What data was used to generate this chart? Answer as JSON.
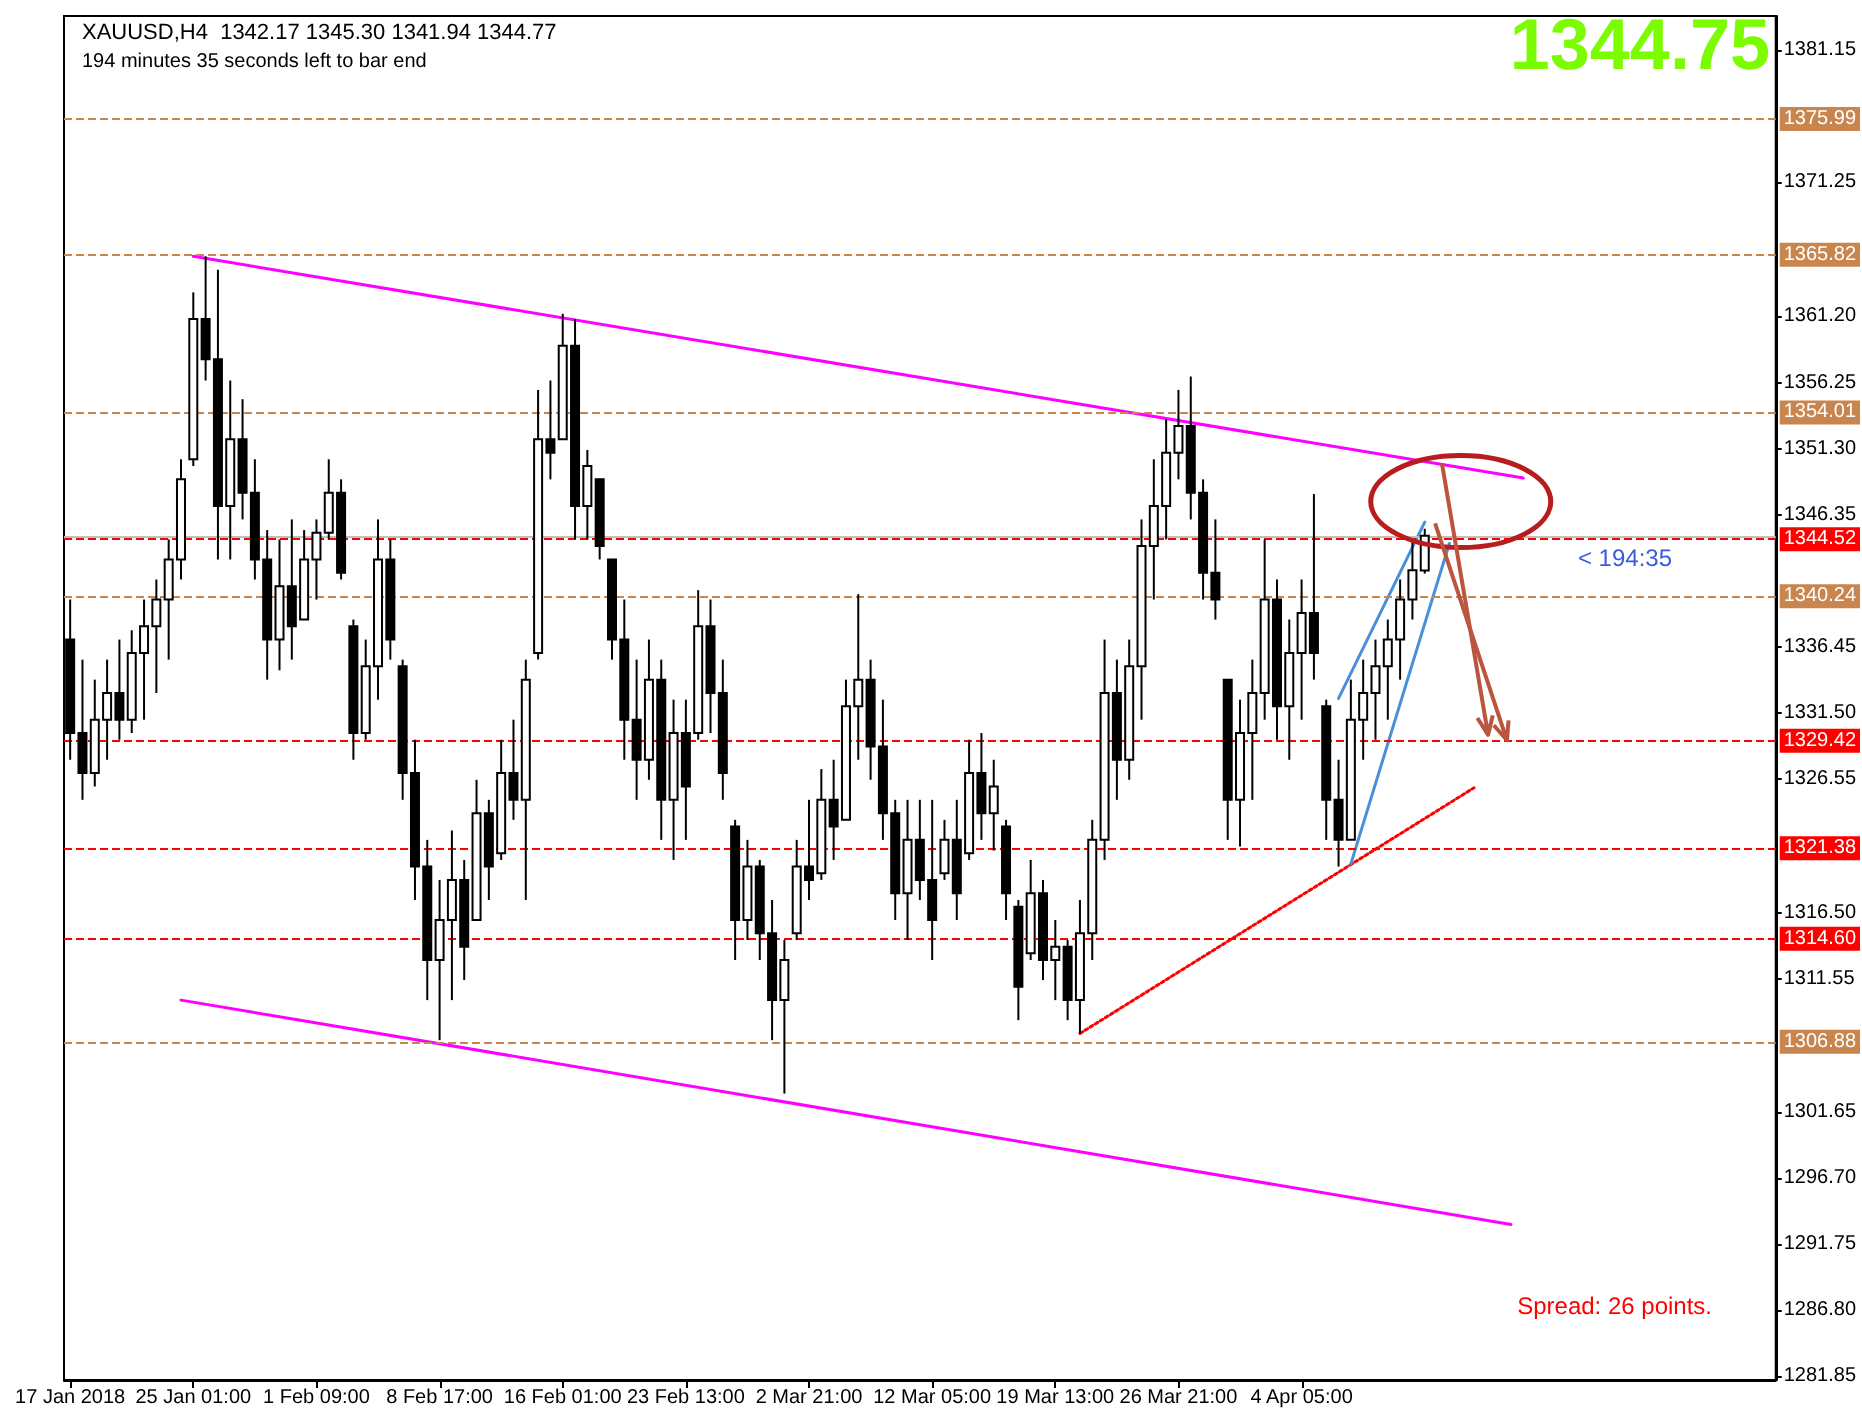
{
  "chart_data": {
    "type": "candlestick",
    "title": "XAUUSD,H4  1342.17 1345.30 1341.94 1344.77",
    "subtitle": "194 minutes 35 seconds left to bar end",
    "marker": "none",
    "categories": [
      "17 Jan 2018",
      null,
      null,
      null,
      null,
      null,
      null,
      null,
      null,
      null,
      "25 Jan 01:00",
      null,
      null,
      null,
      null,
      null,
      null,
      null,
      null,
      null,
      "1 Feb 09:00",
      null,
      null,
      null,
      null,
      null,
      null,
      null,
      null,
      null,
      "8 Feb 17:00",
      null,
      null,
      null,
      null,
      null,
      null,
      null,
      null,
      null,
      "16 Feb 01:00",
      null,
      null,
      null,
      null,
      null,
      null,
      null,
      null,
      null,
      "23 Feb 13:00",
      null,
      null,
      null,
      null,
      null,
      null,
      null,
      null,
      null,
      "2 Mar 21:00",
      null,
      null,
      null,
      null,
      null,
      null,
      null,
      null,
      null,
      "12 Mar 05:00",
      null,
      null,
      null,
      null,
      null,
      null,
      null,
      null,
      null,
      "19 Mar 13:00",
      null,
      null,
      null,
      null,
      null,
      null,
      null,
      null,
      null,
      "26 Mar 21:00",
      null,
      null,
      null,
      null,
      null,
      null,
      null,
      null,
      null,
      "4 Apr 05:00",
      null,
      null,
      null,
      null,
      null,
      null,
      null,
      null,
      null,
      null,
      null,
      null,
      null,
      null,
      null,
      null,
      null,
      null,
      null,
      null,
      null,
      null,
      null,
      null,
      null,
      null,
      null,
      null,
      null,
      null,
      null,
      null,
      null,
      null,
      null,
      null,
      null,
      null
    ],
    "ohlc": [
      [
        1337,
        1340,
        1328,
        1330
      ],
      [
        1330,
        1335.5,
        1325,
        1327
      ],
      [
        1327,
        1334,
        1326,
        1331
      ],
      [
        1331,
        1335.5,
        1328,
        1333
      ],
      [
        1333,
        1337,
        1329.5,
        1331
      ],
      [
        1331,
        1337.7,
        1330,
        1336
      ],
      [
        1336,
        1340,
        1331,
        1338
      ],
      [
        1338,
        1341.5,
        1333,
        1340
      ],
      [
        1340,
        1344.5,
        1335.5,
        1343
      ],
      [
        1343,
        1350.5,
        1341.5,
        1349
      ],
      [
        1350.5,
        1363,
        1350,
        1361
      ],
      [
        1361,
        1365.7,
        1356.4,
        1358
      ],
      [
        1358,
        1364.7,
        1343,
        1347
      ],
      [
        1347,
        1356.4,
        1343,
        1352
      ],
      [
        1352,
        1355,
        1346,
        1348
      ],
      [
        1348,
        1350.5,
        1341.5,
        1343
      ],
      [
        1343,
        1345.2,
        1334,
        1337
      ],
      [
        1337,
        1344.5,
        1334.7,
        1341
      ],
      [
        1341,
        1346,
        1335.5,
        1338
      ],
      [
        1338.5,
        1345.2,
        1338.5,
        1343
      ],
      [
        1343,
        1346,
        1340,
        1345
      ],
      [
        1345,
        1350.5,
        1344.5,
        1348
      ],
      [
        1348,
        1349,
        1341.5,
        1342
      ],
      [
        1338,
        1338.5,
        1328,
        1330
      ],
      [
        1330,
        1337,
        1329.5,
        1335
      ],
      [
        1335,
        1346,
        1332.5,
        1343
      ],
      [
        1343,
        1344.5,
        1335.5,
        1337
      ],
      [
        1335,
        1335.5,
        1325,
        1327
      ],
      [
        1327,
        1329.5,
        1317.5,
        1320
      ],
      [
        1320,
        1322,
        1310,
        1313
      ],
      [
        1313,
        1319,
        1307,
        1316
      ],
      [
        1316,
        1322.7,
        1310,
        1319
      ],
      [
        1319,
        1320.5,
        1311.5,
        1314
      ],
      [
        1316,
        1326.5,
        1316,
        1324
      ],
      [
        1324,
        1325,
        1317.5,
        1320
      ],
      [
        1321,
        1329.5,
        1320.5,
        1327
      ],
      [
        1327,
        1331,
        1323.5,
        1325
      ],
      [
        1325,
        1335.5,
        1317.5,
        1334
      ],
      [
        1336,
        1355.7,
        1335.5,
        1352
      ],
      [
        1352,
        1356.4,
        1349,
        1351
      ],
      [
        1352,
        1361.4,
        1352,
        1359
      ],
      [
        1359,
        1361,
        1344.5,
        1347
      ],
      [
        1347,
        1351.2,
        1344.5,
        1350
      ],
      [
        1349,
        1349,
        1343,
        1344
      ],
      [
        1343,
        1343,
        1335.5,
        1337
      ],
      [
        1337,
        1340,
        1328,
        1331
      ],
      [
        1331,
        1335.5,
        1325,
        1328
      ],
      [
        1328,
        1337,
        1326.5,
        1334
      ],
      [
        1334,
        1335.5,
        1322,
        1325
      ],
      [
        1325,
        1332.5,
        1320.5,
        1330
      ],
      [
        1330,
        1332.5,
        1322,
        1326
      ],
      [
        1330,
        1340.7,
        1329.5,
        1338
      ],
      [
        1338,
        1340,
        1330,
        1333
      ],
      [
        1333,
        1335.5,
        1325,
        1327
      ],
      [
        1323,
        1323.5,
        1313,
        1316
      ],
      [
        1316,
        1322,
        1314.5,
        1320
      ],
      [
        1320,
        1320.5,
        1313,
        1315
      ],
      [
        1315,
        1317.5,
        1307,
        1310
      ],
      [
        1310,
        1314.5,
        1303,
        1313
      ],
      [
        1315,
        1322,
        1314.5,
        1320
      ],
      [
        1320,
        1325,
        1317.5,
        1319
      ],
      [
        1319.5,
        1327.3,
        1319,
        1325
      ],
      [
        1325,
        1328,
        1320.5,
        1323
      ],
      [
        1323.5,
        1334,
        1323.5,
        1332
      ],
      [
        1332,
        1340.4,
        1328,
        1334
      ],
      [
        1334,
        1335.5,
        1326.5,
        1329
      ],
      [
        1329,
        1332.5,
        1322,
        1324
      ],
      [
        1324,
        1325,
        1316,
        1318
      ],
      [
        1318,
        1325,
        1314.5,
        1322
      ],
      [
        1322,
        1325,
        1317.5,
        1319
      ],
      [
        1319,
        1325,
        1313,
        1316
      ],
      [
        1319.5,
        1323.5,
        1319,
        1322
      ],
      [
        1322,
        1325,
        1316,
        1318
      ],
      [
        1321,
        1329.5,
        1320.5,
        1327
      ],
      [
        1327,
        1330,
        1322,
        1324
      ],
      [
        1324,
        1328,
        1321.2,
        1326
      ],
      [
        1323,
        1323.5,
        1316,
        1318
      ],
      [
        1317,
        1317.5,
        1308.5,
        1311
      ],
      [
        1313.5,
        1320.5,
        1313,
        1318
      ],
      [
        1318,
        1319,
        1311.5,
        1313
      ],
      [
        1313,
        1316,
        1310,
        1314
      ],
      [
        1314,
        1314.5,
        1308.5,
        1310
      ],
      [
        1310,
        1317.5,
        1307.5,
        1315
      ],
      [
        1315,
        1323.5,
        1313,
        1322
      ],
      [
        1322,
        1337,
        1320.5,
        1333
      ],
      [
        1333,
        1335.5,
        1325,
        1328
      ],
      [
        1328,
        1337,
        1326.5,
        1335
      ],
      [
        1335,
        1346,
        1331,
        1344
      ],
      [
        1344,
        1350.5,
        1340,
        1347
      ],
      [
        1347,
        1353.5,
        1344.5,
        1351
      ],
      [
        1351,
        1355.7,
        1349,
        1353
      ],
      [
        1353,
        1356.7,
        1346,
        1348
      ],
      [
        1348,
        1349,
        1340,
        1342
      ],
      [
        1342,
        1346,
        1338.5,
        1340
      ],
      [
        1334,
        1334,
        1322,
        1325
      ],
      [
        1325,
        1332.5,
        1321.5,
        1330
      ],
      [
        1330,
        1335.5,
        1325,
        1333
      ],
      [
        1333,
        1344.5,
        1331,
        1340
      ],
      [
        1340,
        1341.5,
        1329.5,
        1332
      ],
      [
        1332,
        1338.5,
        1328,
        1336
      ],
      [
        1336,
        1341.5,
        1331,
        1339
      ],
      [
        1339,
        1347.9,
        1334,
        1336
      ],
      [
        1332,
        1332.5,
        1322,
        1325
      ],
      [
        1325,
        1328,
        1320,
        1322
      ],
      [
        1322,
        1334,
        1322,
        1331
      ],
      [
        1331,
        1335.5,
        1328,
        1333
      ],
      [
        1333,
        1337,
        1329.5,
        1335
      ],
      [
        1335,
        1338.5,
        1331,
        1337
      ],
      [
        1337,
        1341.5,
        1334,
        1340
      ],
      [
        1340,
        1344.5,
        1338.5,
        1342.2
      ],
      [
        1342.17,
        1345.3,
        1341.94,
        1344.77
      ],
      null,
      null,
      null,
      null,
      null,
      null,
      null,
      null,
      null,
      null,
      null,
      null,
      null,
      null,
      null,
      null,
      null,
      null,
      null,
      null,
      null,
      null,
      null,
      null,
      null,
      null,
      null,
      null
    ],
    "series": [
      {
        "type": "line",
        "color": "#ff00ff",
        "line_style": "solid",
        "values": [
          null,
          null,
          null,
          null,
          null,
          null,
          null,
          null,
          null,
          null,
          1365.7,
          null,
          null,
          null,
          null,
          null,
          null,
          null,
          null,
          null,
          null,
          null,
          null,
          null,
          null,
          null,
          null,
          null,
          null,
          null,
          null,
          null,
          null,
          null,
          null,
          null,
          null,
          null,
          null,
          null,
          null,
          null,
          null,
          null,
          null,
          null,
          null,
          null,
          null,
          null,
          null,
          null,
          null,
          null,
          null,
          null,
          null,
          null,
          null,
          null,
          null,
          null,
          null,
          null,
          null,
          null,
          null,
          null,
          null,
          null,
          null,
          null,
          null,
          null,
          null,
          null,
          null,
          null,
          null,
          null,
          null,
          null,
          null,
          null,
          null,
          null,
          null,
          null,
          null,
          null,
          null,
          null,
          null,
          null,
          null,
          null,
          null,
          null,
          null,
          null,
          null,
          null,
          null,
          null,
          null,
          null,
          null,
          null,
          null,
          null,
          null,
          null,
          null,
          null,
          null,
          null,
          null,
          null,
          1349.1,
          null,
          null,
          null,
          null,
          null,
          null,
          null,
          null,
          null,
          null,
          null,
          null,
          null,
          null,
          null,
          null,
          null,
          null,
          null,
          null
        ]
      },
      {
        "type": "line",
        "color": "#ff00ff",
        "line_style": "solid",
        "values": [
          null,
          null,
          null,
          null,
          null,
          null,
          null,
          null,
          null,
          1310.0,
          null,
          null,
          null,
          null,
          null,
          null,
          null,
          null,
          null,
          null,
          null,
          null,
          null,
          null,
          null,
          null,
          null,
          null,
          null,
          null,
          null,
          null,
          null,
          null,
          null,
          null,
          null,
          null,
          null,
          null,
          null,
          null,
          null,
          null,
          null,
          null,
          null,
          null,
          null,
          null,
          null,
          null,
          null,
          null,
          null,
          null,
          null,
          null,
          null,
          null,
          null,
          null,
          null,
          null,
          null,
          null,
          null,
          null,
          null,
          null,
          null,
          null,
          null,
          null,
          null,
          null,
          null,
          null,
          null,
          null,
          null,
          null,
          null,
          null,
          null,
          null,
          null,
          null,
          null,
          null,
          null,
          null,
          null,
          null,
          null,
          null,
          null,
          null,
          null,
          null,
          null,
          null,
          null,
          null,
          null,
          null,
          null,
          null,
          null,
          null,
          null,
          null,
          null,
          null,
          null,
          null,
          null,
          1293.2,
          null,
          null,
          null,
          null,
          null,
          null,
          null,
          null,
          null,
          null,
          null,
          null,
          null,
          null,
          null,
          null,
          null,
          null,
          null,
          null,
          null
        ]
      },
      {
        "type": "line",
        "color": "#ff0000",
        "line_style": "dotted",
        "values": [
          null,
          null,
          null,
          null,
          null,
          null,
          null,
          null,
          null,
          null,
          null,
          null,
          null,
          null,
          null,
          null,
          null,
          null,
          null,
          null,
          null,
          null,
          null,
          null,
          null,
          null,
          null,
          null,
          null,
          null,
          null,
          null,
          null,
          null,
          null,
          null,
          null,
          null,
          null,
          null,
          null,
          null,
          null,
          null,
          null,
          null,
          null,
          null,
          null,
          null,
          null,
          null,
          null,
          null,
          null,
          null,
          null,
          null,
          null,
          null,
          null,
          null,
          null,
          null,
          null,
          null,
          null,
          null,
          null,
          null,
          null,
          null,
          null,
          null,
          null,
          null,
          null,
          null,
          null,
          null,
          null,
          null,
          1307.5,
          null,
          null,
          null,
          null,
          null,
          null,
          null,
          null,
          null,
          null,
          null,
          null,
          null,
          null,
          null,
          null,
          null,
          null,
          null,
          null,
          null,
          null,
          null,
          null,
          null,
          null,
          null,
          null,
          null,
          null,
          null,
          1325.9,
          null,
          null,
          null,
          null,
          null,
          null,
          null,
          null,
          null,
          null,
          null,
          null,
          null,
          null,
          null,
          null,
          null,
          null,
          null,
          null,
          null,
          null,
          null,
          null
        ]
      },
      {
        "type": "line",
        "color": "#4a8fd9",
        "line_style": "solid",
        "values": [
          null,
          null,
          null,
          null,
          null,
          null,
          null,
          null,
          null,
          null,
          null,
          null,
          null,
          null,
          null,
          null,
          null,
          null,
          null,
          null,
          null,
          null,
          null,
          null,
          null,
          null,
          null,
          null,
          null,
          null,
          null,
          null,
          null,
          null,
          null,
          null,
          null,
          null,
          null,
          null,
          null,
          null,
          null,
          null,
          null,
          null,
          null,
          null,
          null,
          null,
          null,
          null,
          null,
          null,
          null,
          null,
          null,
          null,
          null,
          null,
          null,
          null,
          null,
          null,
          null,
          null,
          null,
          null,
          null,
          null,
          null,
          null,
          null,
          null,
          null,
          null,
          null,
          null,
          null,
          null,
          null,
          null,
          null,
          null,
          null,
          null,
          null,
          null,
          null,
          null,
          null,
          null,
          null,
          null,
          null,
          null,
          null,
          null,
          null,
          null,
          null,
          null,
          null,
          1332.6,
          null,
          null,
          null,
          null,
          null,
          null,
          1345.8,
          null,
          null,
          null,
          null,
          null,
          null,
          null,
          null,
          null,
          null,
          null,
          null,
          null,
          null,
          null,
          null,
          null,
          null,
          null,
          null,
          null,
          null,
          null,
          null,
          null,
          null,
          null,
          null
        ]
      },
      {
        "type": "line",
        "color": "#4a8fd9",
        "line_style": "solid",
        "values": [
          null,
          null,
          null,
          null,
          null,
          null,
          null,
          null,
          null,
          null,
          null,
          null,
          null,
          null,
          null,
          null,
          null,
          null,
          null,
          null,
          null,
          null,
          null,
          null,
          null,
          null,
          null,
          null,
          null,
          null,
          null,
          null,
          null,
          null,
          null,
          null,
          null,
          null,
          null,
          null,
          null,
          null,
          null,
          null,
          null,
          null,
          null,
          null,
          null,
          null,
          null,
          null,
          null,
          null,
          null,
          null,
          null,
          null,
          null,
          null,
          null,
          null,
          null,
          null,
          null,
          null,
          null,
          null,
          null,
          null,
          null,
          null,
          null,
          null,
          null,
          null,
          null,
          null,
          null,
          null,
          null,
          null,
          null,
          null,
          null,
          null,
          null,
          null,
          null,
          null,
          null,
          null,
          null,
          null,
          null,
          null,
          null,
          null,
          null,
          null,
          null,
          null,
          null,
          null,
          1320.2,
          null,
          null,
          null,
          null,
          null,
          null,
          null,
          1344.2,
          null,
          null,
          null,
          null,
          null,
          null,
          null,
          null,
          null,
          null,
          null,
          null,
          null,
          null,
          null,
          null,
          null,
          null,
          null,
          null,
          null,
          null,
          null,
          null,
          null,
          null
        ]
      }
    ],
    "ylim": [
      1281.55,
      1383.7
    ],
    "yticks": [
      {
        "value": 1281.85,
        "label": "1281.85"
      },
      {
        "value": 1286.8,
        "label": "1286.80"
      },
      {
        "value": 1291.75,
        "label": "1291.75"
      },
      {
        "value": 1296.7,
        "label": "1296.70"
      },
      {
        "value": 1301.65,
        "label": "1301.65"
      },
      {
        "value": 1311.55,
        "label": "1311.55"
      },
      {
        "value": 1316.5,
        "label": "1316.50"
      },
      {
        "value": 1326.55,
        "label": "1326.55"
      },
      {
        "value": 1331.5,
        "label": "1331.50"
      },
      {
        "value": 1336.45,
        "label": "1336.45"
      },
      {
        "value": 1346.35,
        "label": "1346.35"
      },
      {
        "value": 1351.3,
        "label": "1351.30"
      },
      {
        "value": 1356.25,
        "label": "1356.25"
      },
      {
        "value": 1361.2,
        "label": "1361.20"
      },
      {
        "value": 1371.25,
        "label": "1371.25"
      },
      {
        "value": 1381.15,
        "label": "1381.15"
      }
    ],
    "ref_lines": [
      {
        "axis": "y",
        "value": 1375.99,
        "label": "1375.99",
        "color": "#c8864e",
        "line_style": "dashed"
      },
      {
        "axis": "y",
        "value": 1365.82,
        "label": "1365.82",
        "color": "#c8864e",
        "line_style": "dashed"
      },
      {
        "axis": "y",
        "value": 1354.01,
        "label": "1354.01",
        "color": "#c8864e",
        "line_style": "dashed"
      },
      {
        "axis": "y",
        "value": 1344.75,
        "color": "#c0c0c0",
        "line_style": "solid"
      },
      {
        "axis": "y",
        "value": 1344.52,
        "label": "1344.52",
        "color": "#ff0000",
        "line_style": "dashed"
      },
      {
        "axis": "y",
        "value": 1340.24,
        "label": "1340.24",
        "color": "#c8864e",
        "line_style": "dashed"
      },
      {
        "axis": "y",
        "value": 1329.42,
        "label": "1329.42",
        "color": "#ff0000",
        "line_style": "dashed"
      },
      {
        "axis": "y",
        "value": 1321.38,
        "label": "1321.38",
        "color": "#ff0000",
        "line_style": "dashed"
      },
      {
        "axis": "y",
        "value": 1314.6,
        "label": "1314.60",
        "color": "#ff0000",
        "line_style": "dashed"
      },
      {
        "axis": "y",
        "value": 1306.88,
        "label": "1306.88",
        "color": "#c8864e",
        "line_style": "dashed"
      }
    ],
    "annotations": [
      "1344.75",
      "< 194:35",
      "Spread: 26 points."
    ]
  }
}
